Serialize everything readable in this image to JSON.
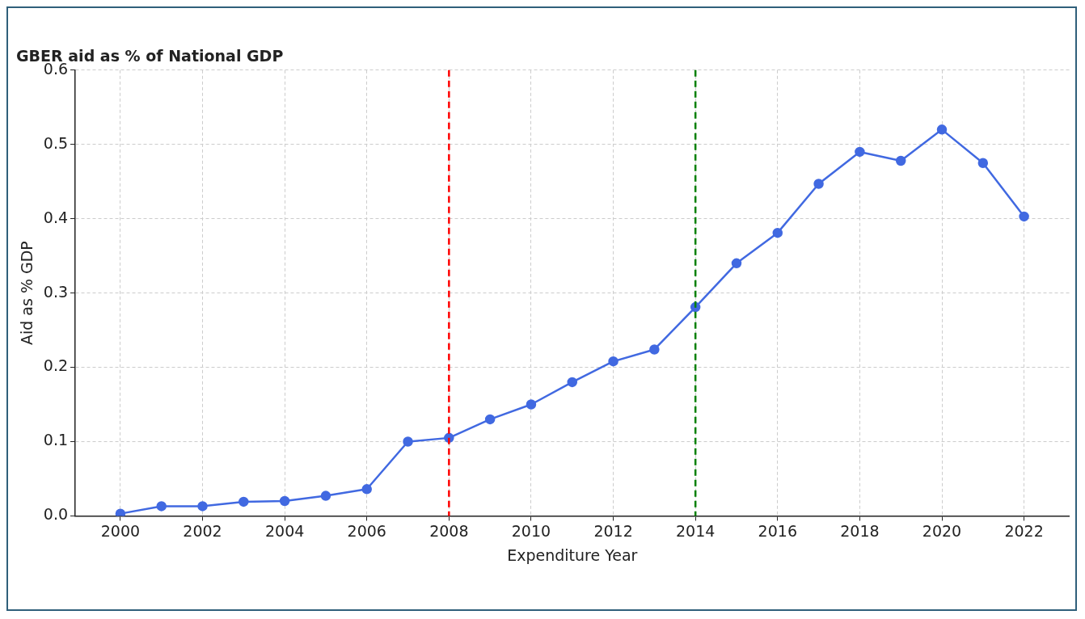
{
  "chart_data": {
    "type": "line",
    "title": "GBER aid as % of National GDP",
    "xlabel": "Expenditure Year",
    "ylabel": "Aid as % GDP",
    "x": [
      2000,
      2001,
      2002,
      2003,
      2004,
      2005,
      2006,
      2007,
      2008,
      2009,
      2010,
      2011,
      2012,
      2013,
      2014,
      2015,
      2016,
      2017,
      2018,
      2019,
      2020,
      2021,
      2022
    ],
    "series": [
      {
        "color": "#4169e1",
        "values": [
          0.003,
          0.013,
          0.013,
          0.019,
          0.02,
          0.027,
          0.036,
          0.1,
          0.105,
          0.13,
          0.15,
          0.18,
          0.208,
          0.224,
          0.281,
          0.34,
          0.381,
          0.447,
          0.49,
          0.478,
          0.52,
          0.475,
          0.403
        ]
      }
    ],
    "xlim": [
      1998.9,
      2023.1
    ],
    "ylim": [
      0,
      0.6
    ],
    "xticks": [
      2000,
      2002,
      2004,
      2006,
      2008,
      2010,
      2012,
      2014,
      2016,
      2018,
      2020,
      2022
    ],
    "yticks": [
      {
        "value": 0,
        "label": "0.0"
      },
      0.1,
      0.2,
      0.3,
      0.4,
      0.5,
      0.6
    ],
    "grid": true,
    "marker": "circle",
    "line_style": "solid",
    "ref_lines": [
      {
        "axis": "x",
        "value": 2008,
        "color": "#ff0000",
        "line_style": "dashed"
      },
      {
        "axis": "x",
        "value": 2014,
        "color": "#008000",
        "line_style": "dashed"
      }
    ]
  }
}
